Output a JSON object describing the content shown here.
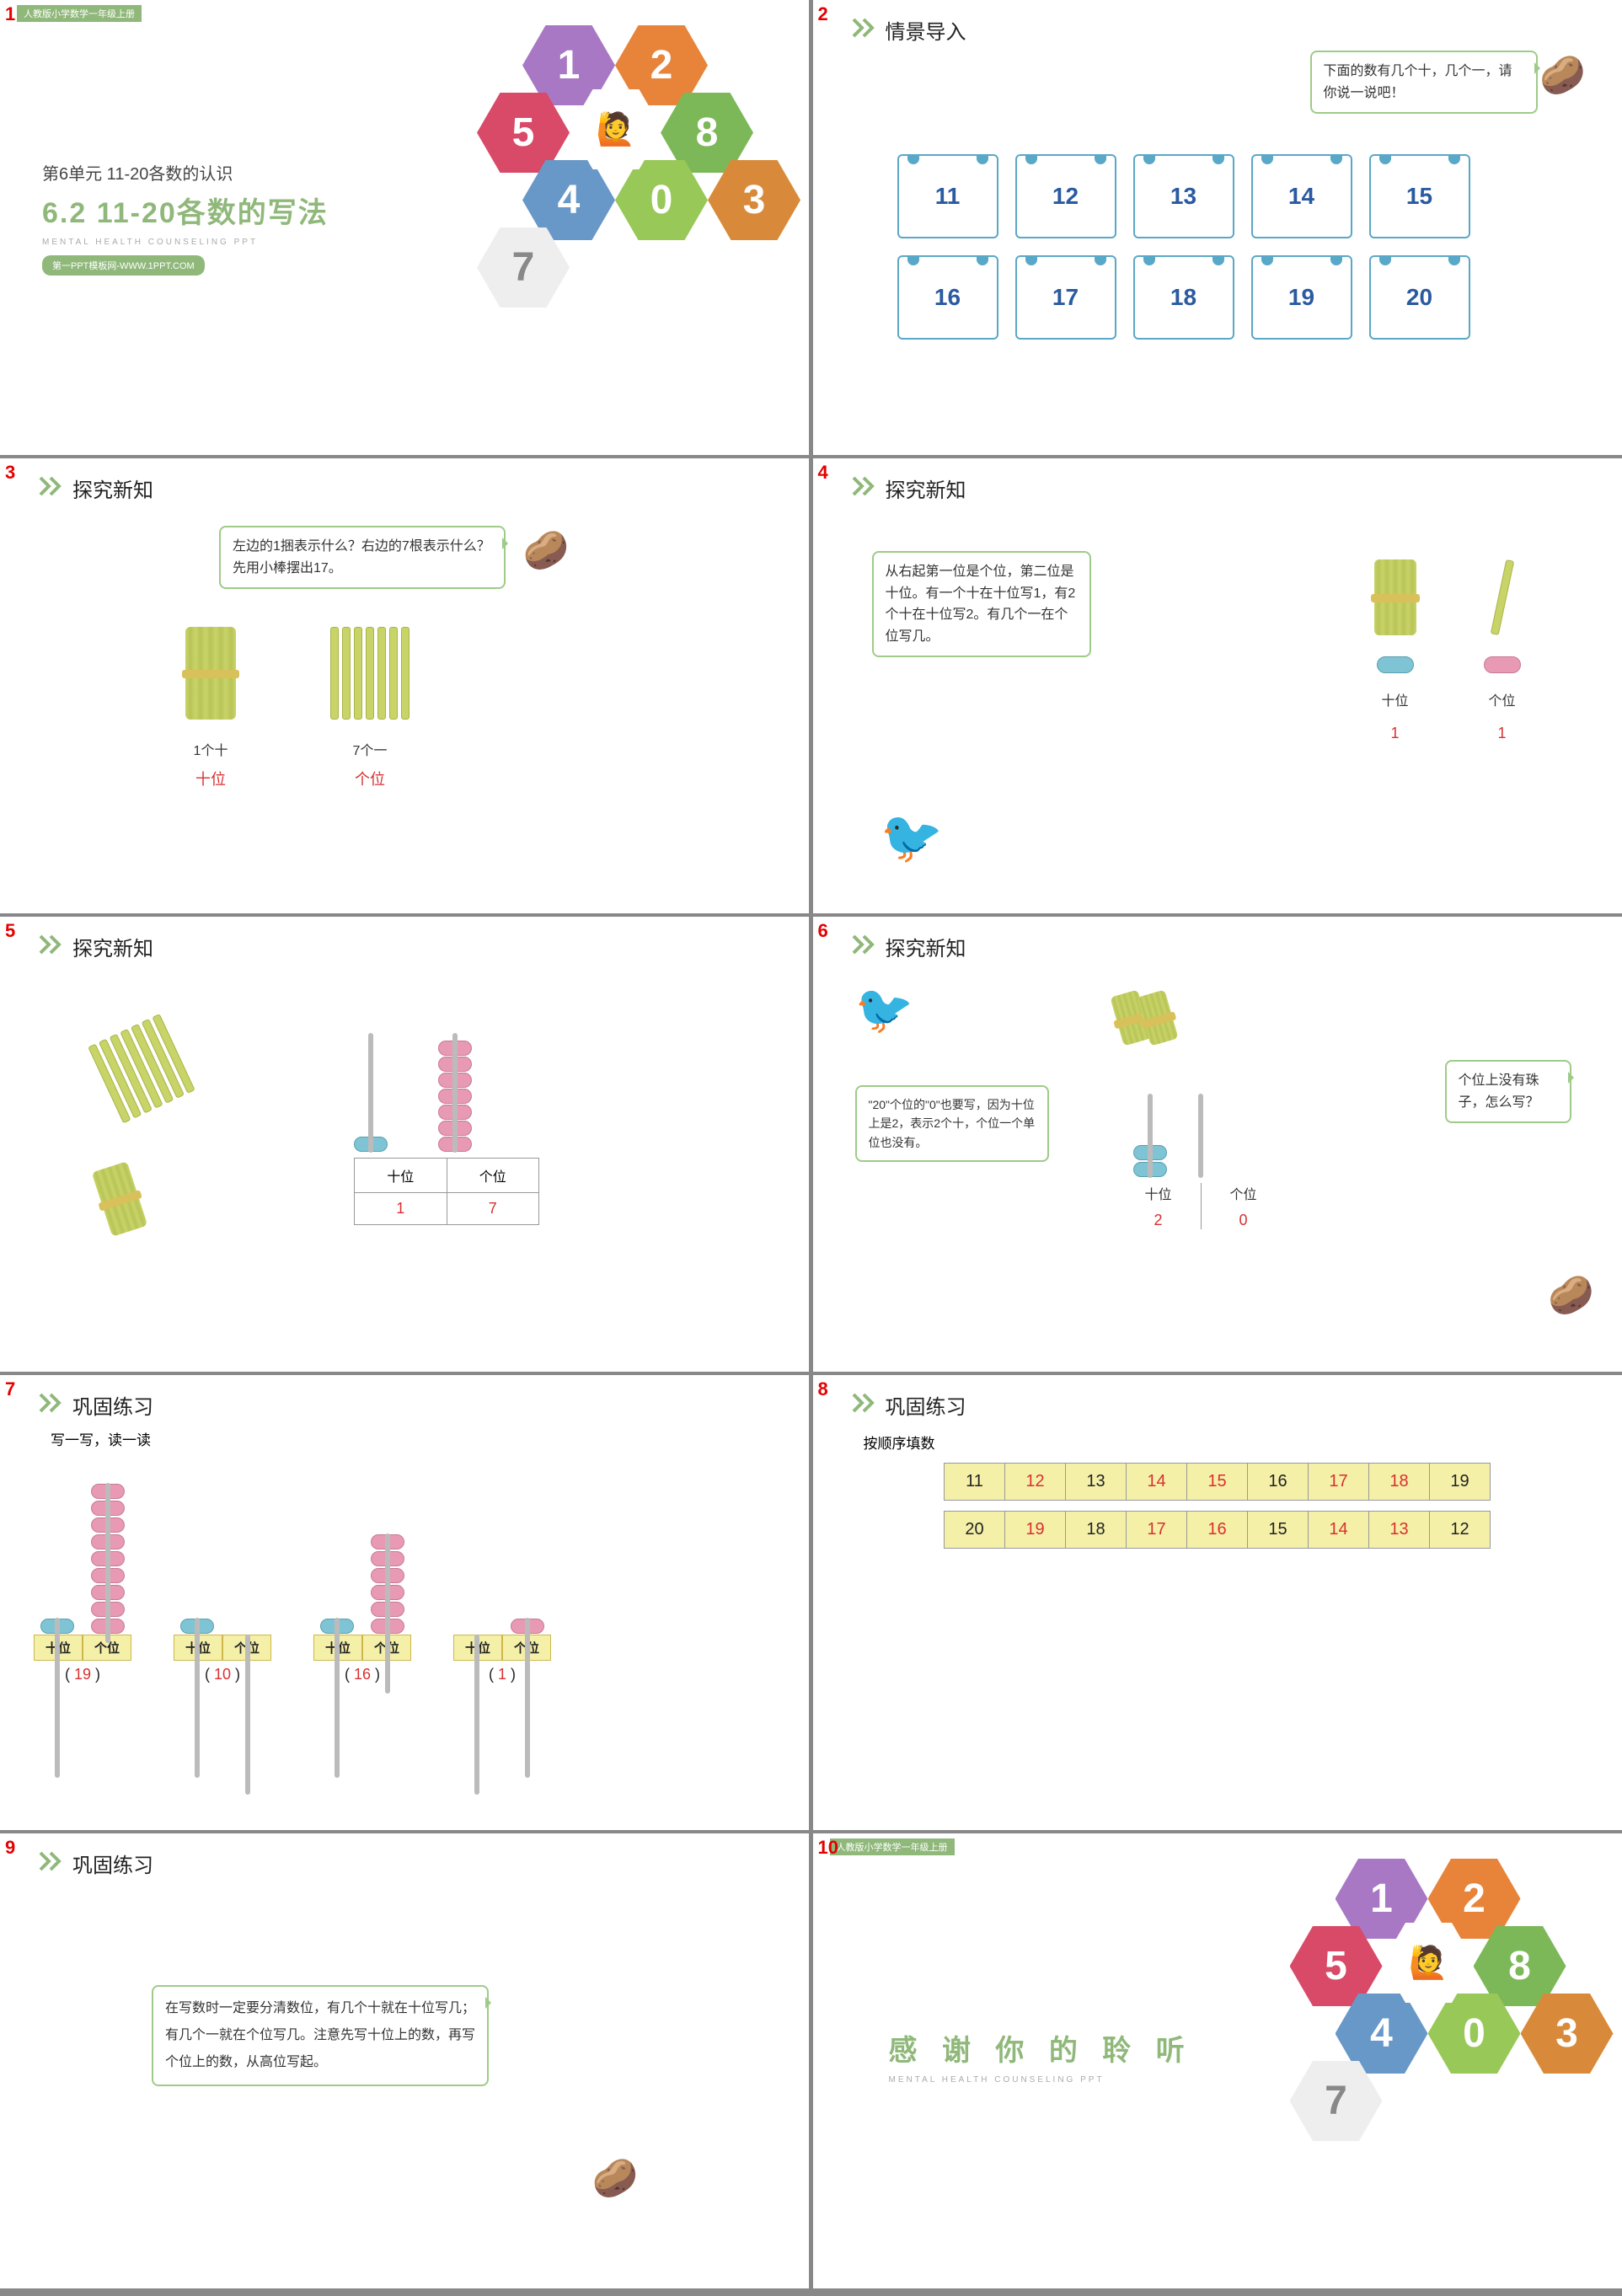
{
  "colors": {
    "accent": "#8fb87a",
    "red": "#d83030",
    "blue": "#2a5aa0",
    "card_border": "#5aa8c7",
    "bubble_border": "#9ecb88",
    "highlight_bg": "#f5f0a8",
    "stick": "#c8d468"
  },
  "slide1": {
    "number": "1",
    "band": "人教版小学数学一年级上册",
    "unit_line": "第6单元  11-20各数的认识",
    "title": "6.2  11-20各数的写法",
    "tagline": "MENTAL HEALTH COUNSELING PPT",
    "badge": "第一PPT模板网-WWW.1PPT.COM"
  },
  "slide2": {
    "number": "2",
    "section": "情景导入",
    "bubble": "下面的数有几个十，几个一，请你说一说吧！",
    "cards": [
      "11",
      "12",
      "13",
      "14",
      "15",
      "16",
      "17",
      "18",
      "19",
      "20"
    ]
  },
  "slide3": {
    "number": "3",
    "section": "探究新知",
    "bubble": "左边的1捆表示什么？右边的7根表示什么？\n先用小棒摆出17。",
    "left_label": "1个十",
    "right_label": "7个一",
    "left_place": "十位",
    "right_place": "个位",
    "single_sticks": 7
  },
  "slide4": {
    "number": "4",
    "section": "探究新知",
    "bubble": "从右起第一位是个位，第二位是十位。有一个十在十位写1，有2个十在十位写2。有几个一在个位写几。",
    "left_place": "十位",
    "right_place": "个位",
    "left_val": "1",
    "right_val": "1"
  },
  "slide5": {
    "number": "5",
    "section": "探究新知",
    "tens_header": "十位",
    "ones_header": "个位",
    "tens_val": "1",
    "ones_val": "7",
    "bead_tens": 1,
    "bead_ones": 7,
    "loose_sticks": 7
  },
  "slide6": {
    "number": "6",
    "section": "探究新知",
    "bubble_left": "\"20\"个位的\"0\"也要写，因为十位上是2，表示2个十，个位一个单位也没有。",
    "bubble_right": "个位上没有珠子，怎么写？",
    "tens_header": "十位",
    "ones_header": "个位",
    "tens_val": "2",
    "ones_val": "0",
    "bead_tens": 2
  },
  "slide7": {
    "number": "7",
    "section": "巩固练习",
    "subtitle": "写一写，读一读",
    "headers": {
      "tens": "十位",
      "ones": "个位"
    },
    "items": [
      {
        "tens_beads": 1,
        "ones_beads": 9,
        "ans": "19"
      },
      {
        "tens_beads": 1,
        "ones_beads": 0,
        "ans": "10"
      },
      {
        "tens_beads": 1,
        "ones_beads": 6,
        "ans": "16"
      },
      {
        "tens_beads": 0,
        "ones_beads": 1,
        "ans": "1"
      }
    ]
  },
  "slide8": {
    "number": "8",
    "section": "巩固练习",
    "subtitle": "按顺序填数",
    "row1": [
      {
        "v": "11",
        "c": "blk"
      },
      {
        "v": "12",
        "c": "red"
      },
      {
        "v": "13",
        "c": "blk"
      },
      {
        "v": "14",
        "c": "red"
      },
      {
        "v": "15",
        "c": "red"
      },
      {
        "v": "16",
        "c": "blk"
      },
      {
        "v": "17",
        "c": "red"
      },
      {
        "v": "18",
        "c": "red"
      },
      {
        "v": "19",
        "c": "blk"
      }
    ],
    "row2": [
      {
        "v": "20",
        "c": "blk"
      },
      {
        "v": "19",
        "c": "red"
      },
      {
        "v": "18",
        "c": "blk"
      },
      {
        "v": "17",
        "c": "red"
      },
      {
        "v": "16",
        "c": "red"
      },
      {
        "v": "15",
        "c": "blk"
      },
      {
        "v": "14",
        "c": "red"
      },
      {
        "v": "13",
        "c": "red"
      },
      {
        "v": "12",
        "c": "blk"
      }
    ]
  },
  "slide9": {
    "number": "9",
    "section": "巩固练习",
    "bubble": "在写数时一定要分清数位，有几个十就在十位写几；有几个一就在个位写几。注意先写十位上的数，再写个位上的数，从高位写起。"
  },
  "slide10": {
    "number": "10",
    "band": "人教版小学数学一年级上册",
    "title": "感 谢 你 的 聆 听",
    "tagline": "MENTAL HEALTH COUNSELING PPT"
  }
}
